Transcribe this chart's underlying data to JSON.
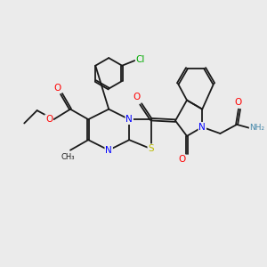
{
  "bg_color": "#ebebeb",
  "bond_color": "#1a1a1a",
  "N_color": "#0000ff",
  "O_color": "#ff0000",
  "S_color": "#bbbb00",
  "Cl_color": "#00aa00",
  "NH2_color": "#4488aa",
  "lw": 1.3,
  "dbo": 0.055,
  "figsize": [
    3.0,
    3.0
  ],
  "dpi": 100,
  "xlim": [
    0,
    10
  ],
  "ylim": [
    0,
    10
  ]
}
